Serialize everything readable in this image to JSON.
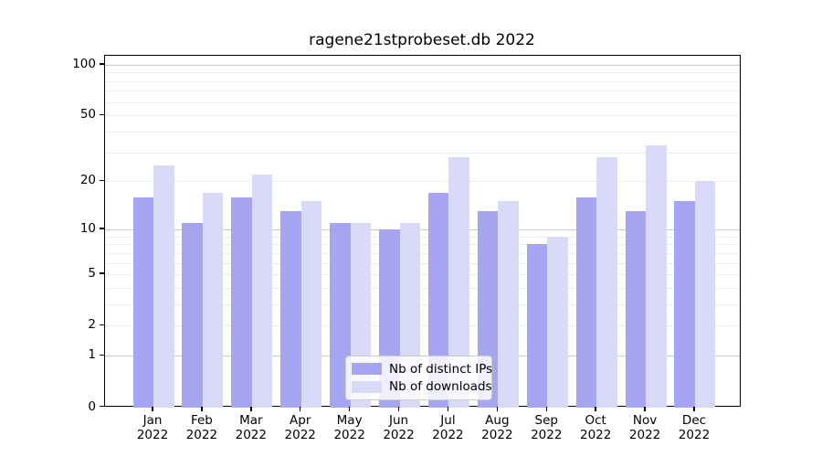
{
  "chart_data": {
    "type": "bar",
    "title": "ragene21stprobeset.db 2022",
    "categories": [
      {
        "month": "Jan",
        "year": "2022"
      },
      {
        "month": "Feb",
        "year": "2022"
      },
      {
        "month": "Mar",
        "year": "2022"
      },
      {
        "month": "Apr",
        "year": "2022"
      },
      {
        "month": "May",
        "year": "2022"
      },
      {
        "month": "Jun",
        "year": "2022"
      },
      {
        "month": "Jul",
        "year": "2022"
      },
      {
        "month": "Aug",
        "year": "2022"
      },
      {
        "month": "Sep",
        "year": "2022"
      },
      {
        "month": "Oct",
        "year": "2022"
      },
      {
        "month": "Nov",
        "year": "2022"
      },
      {
        "month": "Dec",
        "year": "2022"
      }
    ],
    "series": [
      {
        "name": "Nb of distinct IPs",
        "color": "#a5a5f1",
        "values": [
          16,
          11,
          16,
          13,
          11,
          10,
          17,
          13,
          8,
          16,
          13,
          15
        ]
      },
      {
        "name": "Nb of downloads",
        "color": "#d9d9f8",
        "values": [
          25,
          17,
          22,
          15,
          11,
          11,
          28,
          15,
          9,
          28,
          33,
          20
        ]
      }
    ],
    "y_axis": {
      "scale": "log1p",
      "tick_labels": [
        0,
        1,
        2,
        5,
        10,
        20,
        50,
        100
      ],
      "major_gridlines": [
        1,
        10,
        100
      ],
      "minor_gridlines": [
        2,
        3,
        4,
        5,
        6,
        7,
        8,
        9,
        20,
        30,
        40,
        50,
        60,
        70,
        80,
        90
      ],
      "max": 113
    },
    "legend_position": "inside-bottom-center",
    "grid": true,
    "colors": {
      "major_grid": "#c9c9c9",
      "minor_grid": "#ececec",
      "axis": "#000000",
      "background": "#ffffff"
    }
  }
}
